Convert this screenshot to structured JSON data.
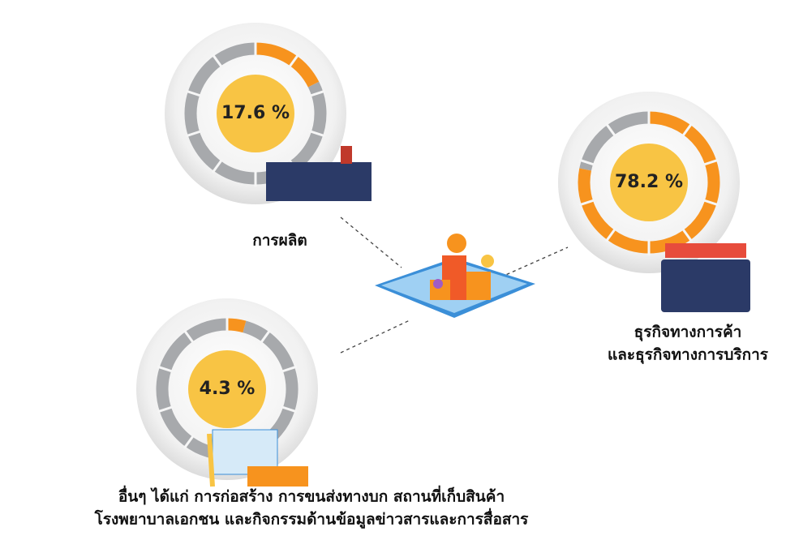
{
  "chart_data": [
    {
      "type": "donut",
      "title": [
        "การผลิต"
      ],
      "values": [
        17.6
      ],
      "value_labels": [
        "17.6 %"
      ],
      "color": "#f7931e",
      "rest_color": "#a7a9ac",
      "center_color": "#f8c444"
    },
    {
      "type": "donut",
      "title": [
        "ธุรกิจทางการค้า",
        "และธุรกิจทางการบริการ"
      ],
      "values": [
        78.2
      ],
      "value_labels": [
        "78.2 %"
      ],
      "color": "#f7931e",
      "rest_color": "#a7a9ac",
      "center_color": "#f8c444"
    },
    {
      "type": "donut",
      "title": [
        "อื่นๆ ได้แก่ การก่อสร้าง การขนส่งทางบก สถานที่เก็บสินค้า",
        "โรงพยาบาลเอกชน และกิจกรรมด้านข้อมูลข่าวสารและการสื่อสาร"
      ],
      "values": [
        4.3
      ],
      "value_labels": [
        "4.3 %"
      ],
      "color": "#f7931e",
      "rest_color": "#a7a9ac",
      "center_color": "#f8c444"
    }
  ]
}
